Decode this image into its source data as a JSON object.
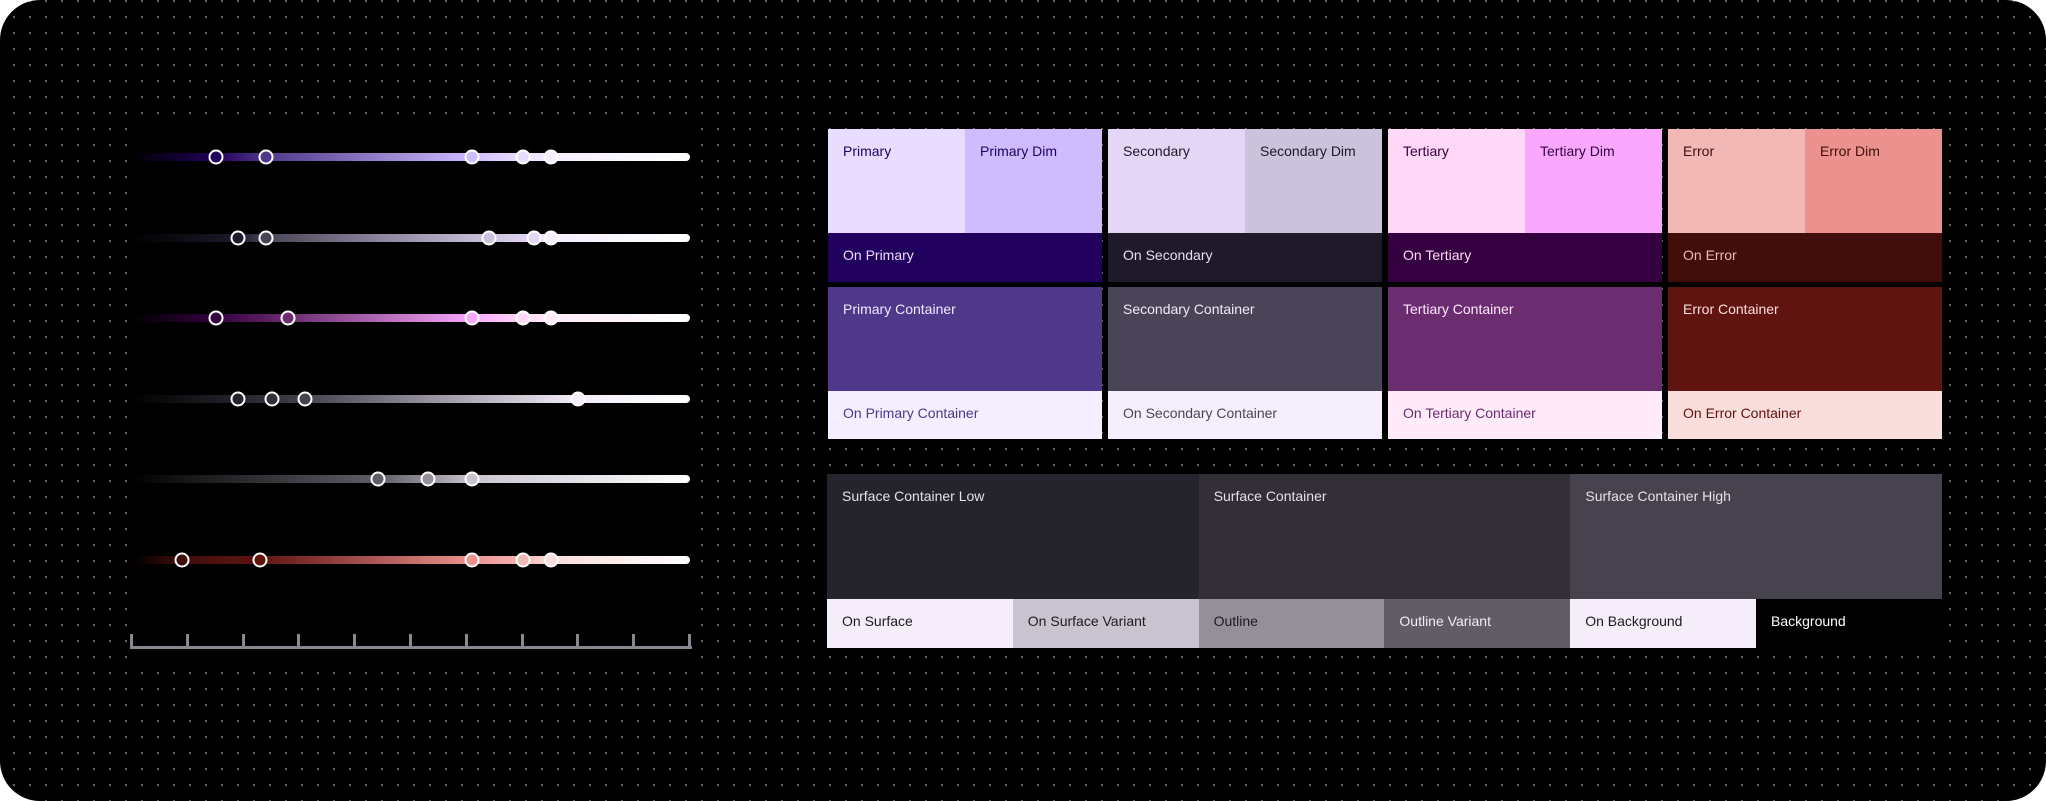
{
  "palettes": [
    {
      "key": "primary",
      "main": {
        "label": "Primary",
        "bg": "#e9ddff",
        "fg": "#22005d"
      },
      "dim": {
        "label": "Primary Dim",
        "bg": "#cfbcff",
        "fg": "#22005d"
      },
      "on": {
        "label": "On Primary",
        "bg": "#22005d",
        "fg": "#e9ddff"
      },
      "container": {
        "label": "Primary Container",
        "bg": "#4f378a",
        "fg": "#f0e8ff"
      },
      "on_container": {
        "label": "On Primary Container",
        "bg": "#f5eeff",
        "fg": "#4f378a"
      }
    },
    {
      "key": "secondary",
      "main": {
        "label": "Secondary",
        "bg": "#e4d6f6",
        "fg": "#1e192b"
      },
      "dim": {
        "label": "Secondary Dim",
        "bg": "#cbc2dc",
        "fg": "#1e192b"
      },
      "on": {
        "label": "On Secondary",
        "bg": "#1e192b",
        "fg": "#e8def8"
      },
      "container": {
        "label": "Secondary Container",
        "bg": "#4a4458",
        "fg": "#f0e8fa"
      },
      "on_container": {
        "label": "On Secondary Container",
        "bg": "#f5eefc",
        "fg": "#4a4458"
      }
    },
    {
      "key": "tertiary",
      "main": {
        "label": "Tertiary",
        "bg": "#ffd8f7",
        "fg": "#35003f"
      },
      "dim": {
        "label": "Tertiary Dim",
        "bg": "#f9a8fd",
        "fg": "#35003f"
      },
      "on": {
        "label": "On Tertiary",
        "bg": "#35003f",
        "fg": "#ffd8f7"
      },
      "container": {
        "label": "Tertiary Container",
        "bg": "#6b2c70",
        "fg": "#ffe8fa"
      },
      "on_container": {
        "label": "On Tertiary Container",
        "bg": "#ffebfa",
        "fg": "#6b2c70"
      }
    },
    {
      "key": "error",
      "main": {
        "label": "Error",
        "bg": "#f2b8b5",
        "fg": "#410e0b"
      },
      "dim": {
        "label": "Error Dim",
        "bg": "#ec928e",
        "fg": "#410e0b"
      },
      "on": {
        "label": "On Error",
        "bg": "#410e0b",
        "fg": "#f2b8b5"
      },
      "container": {
        "label": "Error Container",
        "bg": "#601410",
        "fg": "#f9dedc"
      },
      "on_container": {
        "label": "On Error Container",
        "bg": "#f9dedc",
        "fg": "#601410"
      }
    }
  ],
  "surfaces": [
    {
      "label": "Surface Container Low",
      "bg": "#25232b",
      "fg": "#e6e0ea"
    },
    {
      "label": "Surface Container",
      "bg": "#322f37",
      "fg": "#e6e0ea"
    },
    {
      "label": "Surface Container High",
      "bg": "#46434e",
      "fg": "#e6e0ea"
    }
  ],
  "surface_roles": [
    {
      "label": "On Surface",
      "bg": "#f5eefa",
      "fg": "#1c1b1f"
    },
    {
      "label": "On Surface Variant",
      "bg": "#cac4d0",
      "fg": "#1c1b1f"
    },
    {
      "label": "Outline",
      "bg": "#948f99",
      "fg": "#1c1b1f"
    },
    {
      "label": "Outline Variant",
      "bg": "#605d66",
      "fg": "#f0ebf4"
    },
    {
      "label": "On Background",
      "bg": "#f5eefa",
      "fg": "#1c1b1f"
    },
    {
      "label": "Background",
      "bg": "#000000",
      "fg": "#ffffff"
    }
  ],
  "tonal_scale": {
    "range": [
      0,
      100
    ],
    "ticks": 11,
    "axis_color": "#8a8690"
  },
  "tonal_palettes": [
    {
      "key": "primary",
      "stops": [
        {
          "value": 15,
          "color": "#22005d"
        },
        {
          "value": 24,
          "color": "#4f378a"
        },
        {
          "value": 61,
          "color": "#cfbcff"
        },
        {
          "value": 70,
          "color": "#e9ddff"
        },
        {
          "value": 75,
          "color": "#f5eeff"
        }
      ]
    },
    {
      "key": "secondary",
      "stops": [
        {
          "value": 19,
          "color": "#1e192b"
        },
        {
          "value": 24,
          "color": "#4a4458"
        },
        {
          "value": 64,
          "color": "#cbc2dc"
        },
        {
          "value": 72,
          "color": "#e4d6f6"
        },
        {
          "value": 75,
          "color": "#f5eefc"
        }
      ]
    },
    {
      "key": "tertiary",
      "stops": [
        {
          "value": 15,
          "color": "#35003f"
        },
        {
          "value": 28,
          "color": "#6b2c70"
        },
        {
          "value": 61,
          "color": "#f9a8fd"
        },
        {
          "value": 70,
          "color": "#ffd8f7"
        },
        {
          "value": 75,
          "color": "#ffebfa"
        }
      ]
    },
    {
      "key": "neutral",
      "stops": [
        {
          "value": 19,
          "color": "#25232b"
        },
        {
          "value": 25,
          "color": "#322f37"
        },
        {
          "value": 31,
          "color": "#46434e"
        },
        {
          "value": 80,
          "color": "#f5eefa"
        }
      ]
    },
    {
      "key": "neutral-variant",
      "stops": [
        {
          "value": 44,
          "color": "#605d66"
        },
        {
          "value": 53,
          "color": "#948f99"
        },
        {
          "value": 61,
          "color": "#cac4d0"
        }
      ]
    },
    {
      "key": "error",
      "stops": [
        {
          "value": 9,
          "color": "#410e0b"
        },
        {
          "value": 23,
          "color": "#601410"
        },
        {
          "value": 61,
          "color": "#ec928e"
        },
        {
          "value": 70,
          "color": "#f2b8b5"
        },
        {
          "value": 75,
          "color": "#f9dedc"
        }
      ]
    }
  ]
}
